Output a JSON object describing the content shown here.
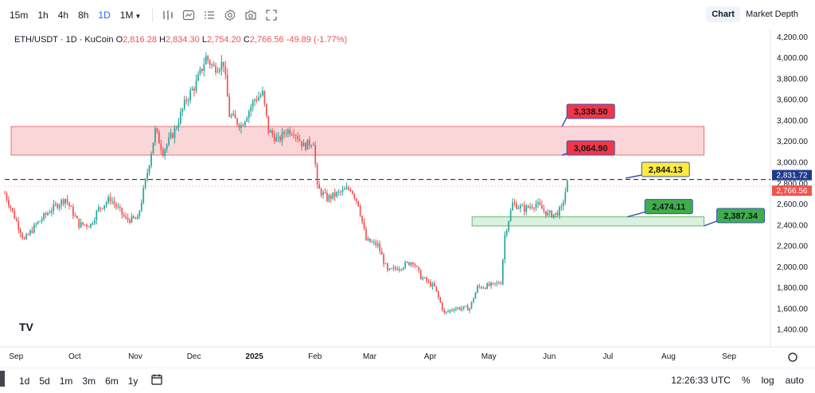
{
  "toolbar": {
    "intervals": [
      "15m",
      "1h",
      "4h",
      "8h",
      "1D",
      "1M"
    ],
    "active_interval": "1D",
    "icons": [
      "chart-type-icon",
      "indicators-icon",
      "compare-icon",
      "settings-icon",
      "screenshot-icon",
      "fullscreen-icon"
    ],
    "tabs": [
      "Chart",
      "Market Depth"
    ],
    "active_tab": "Chart"
  },
  "legend": {
    "symbol": "ETH/USDT · 1D · KuCoin",
    "open_label": "O",
    "open": "2,816.28",
    "high_label": "H",
    "high": "2,834.30",
    "low_label": "L",
    "low": "2,754.20",
    "close_label": "C",
    "close": "2,766.56",
    "change": "-49.89 (-1.77%)"
  },
  "colors": {
    "up": "#26a69a",
    "down": "#ef5350",
    "resistance_zone": "#f8c8cc",
    "support_zone": "#cdebd5",
    "label_red": "#f23645",
    "label_yellow": "#ffeb3b",
    "label_green": "#3fae4a"
  },
  "chart_data": {
    "type": "candlestick",
    "symbol": "ETH/USDT",
    "interval": "1D",
    "exchange": "KuCoin",
    "x_tick_labels": [
      "Sep",
      "Oct",
      "Nov",
      "Dec",
      "2025",
      "Feb",
      "Mar",
      "Apr",
      "May",
      "Jun",
      "Jul",
      "Aug",
      "Sep"
    ],
    "x_tick_dates": [
      "2024-09-01",
      "2024-10-01",
      "2024-11-01",
      "2024-12-01",
      "2025-01-01",
      "2025-02-01",
      "2025-03-01",
      "2025-04-01",
      "2025-05-01",
      "2025-06-01",
      "2025-07-01",
      "2025-08-01",
      "2025-09-01"
    ],
    "x_range": [
      "2024-08-27",
      "2025-09-23"
    ],
    "y_ticks": [
      "4,200.00",
      "4,000.00",
      "3,800.00",
      "3,600.00",
      "3,400.00",
      "3,200.00",
      "3,000.00",
      "2,800.00",
      "2,600.00",
      "2,400.00",
      "2,200.00",
      "2,000.00",
      "1,800.00",
      "1,600.00",
      "1,400.00"
    ],
    "y_range": [
      1230,
      4260
    ],
    "price_path": [
      [
        "2024-08-27",
        2700
      ],
      [
        "2024-09-06",
        2250
      ],
      [
        "2024-09-12",
        2400
      ],
      [
        "2024-09-20",
        2550
      ],
      [
        "2024-09-27",
        2650
      ],
      [
        "2024-10-04",
        2400
      ],
      [
        "2024-10-10",
        2400
      ],
      [
        "2024-10-14",
        2550
      ],
      [
        "2024-10-20",
        2650
      ],
      [
        "2024-10-28",
        2450
      ],
      [
        "2024-11-03",
        2450
      ],
      [
        "2024-11-08",
        2900
      ],
      [
        "2024-11-12",
        3300
      ],
      [
        "2024-11-16",
        3100
      ],
      [
        "2024-11-22",
        3300
      ],
      [
        "2024-11-28",
        3600
      ],
      [
        "2024-12-03",
        3750
      ],
      [
        "2024-12-08",
        4000
      ],
      [
        "2024-12-12",
        3900
      ],
      [
        "2024-12-17",
        3950
      ],
      [
        "2024-12-20",
        3450
      ],
      [
        "2024-12-26",
        3350
      ],
      [
        "2025-01-02",
        3600
      ],
      [
        "2025-01-06",
        3650
      ],
      [
        "2025-01-09",
        3300
      ],
      [
        "2025-01-14",
        3200
      ],
      [
        "2025-01-18",
        3300
      ],
      [
        "2025-01-22",
        3300
      ],
      [
        "2025-01-27",
        3150
      ],
      [
        "2025-02-01",
        3200
      ],
      [
        "2025-02-03",
        2750
      ],
      [
        "2025-02-08",
        2650
      ],
      [
        "2025-02-14",
        2700
      ],
      [
        "2025-02-20",
        2750
      ],
      [
        "2025-02-24",
        2600
      ],
      [
        "2025-02-28",
        2250
      ],
      [
        "2025-03-06",
        2200
      ],
      [
        "2025-03-11",
        1950
      ],
      [
        "2025-03-18",
        2000
      ],
      [
        "2025-03-24",
        2050
      ],
      [
        "2025-03-28",
        1900
      ],
      [
        "2025-04-04",
        1800
      ],
      [
        "2025-04-09",
        1550
      ],
      [
        "2025-04-14",
        1600
      ],
      [
        "2025-04-22",
        1600
      ],
      [
        "2025-04-26",
        1800
      ],
      [
        "2025-05-04",
        1820
      ],
      [
        "2025-05-08",
        1850
      ],
      [
        "2025-05-10",
        2300
      ],
      [
        "2025-05-14",
        2600
      ],
      [
        "2025-05-20",
        2550
      ],
      [
        "2025-05-26",
        2600
      ],
      [
        "2025-06-01",
        2500
      ],
      [
        "2025-06-05",
        2500
      ],
      [
        "2025-06-08",
        2550
      ],
      [
        "2025-06-11",
        2800
      ]
    ],
    "zones": [
      {
        "low": 3064.9,
        "high": 3338.5,
        "start": "2024-08-27",
        "end": "2025-08-20",
        "color": "red"
      },
      {
        "low": 2387.34,
        "high": 2474.11,
        "start": "2025-04-20",
        "end": "2025-08-20",
        "color": "green"
      }
    ],
    "dashed_line": 2831.72,
    "price_labels": [
      {
        "price": 3338.5,
        "text": "3,338.50",
        "color": "red",
        "anchor_date": "2025-07-15"
      },
      {
        "price": 3064.9,
        "text": "3,064.90",
        "color": "red",
        "anchor_date": "2025-07-15"
      },
      {
        "price": 2844.13,
        "text": "2,844.13",
        "color": "yellow",
        "anchor_date": "2025-07-15"
      },
      {
        "price": 2474.11,
        "text": "2,474.11",
        "color": "green",
        "anchor_date": "2025-07-15"
      },
      {
        "price": 2387.34,
        "text": "2,387.34",
        "color": "green",
        "anchor_date": "2025-08-20"
      }
    ],
    "axis_badges": [
      {
        "price": 2831.72,
        "text": "2,831.72",
        "color": "#1e3a8a"
      },
      {
        "price": 2766.56,
        "text": "2,766.56",
        "color": "#ef5350"
      }
    ],
    "grid": false
  },
  "bottom": {
    "ranges": [
      "1d",
      "5d",
      "1m",
      "3m",
      "6m",
      "1y"
    ],
    "time": "12:26:33 UTC",
    "percent": "%",
    "log": "log",
    "auto": "auto"
  }
}
